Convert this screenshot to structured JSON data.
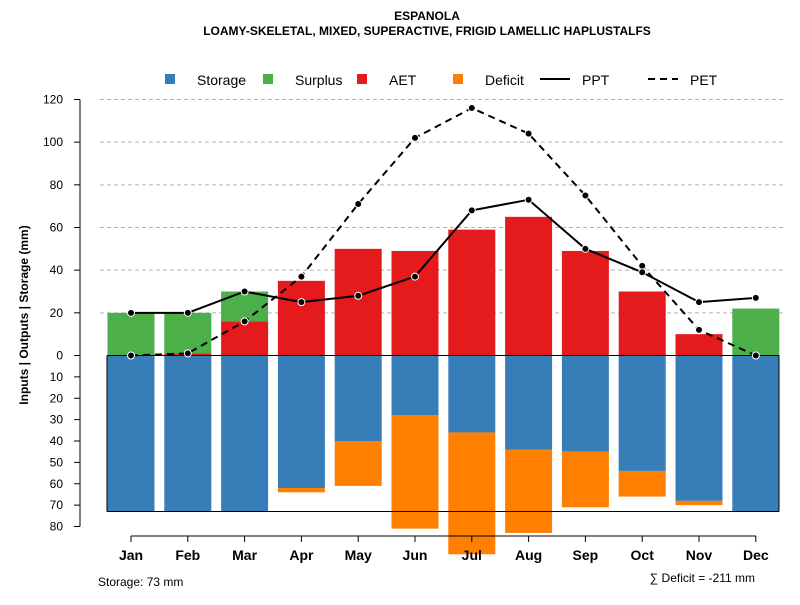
{
  "chart_data": {
    "type": "bar",
    "title": "ESPANOLA",
    "subtitle": "LOAMY-SKELETAL, MIXED, SUPERACTIVE, FRIGID LAMELLIC HAPLUSTALFS",
    "ylabel": "Inputs | Outputs | Storage    (mm)",
    "categories": [
      "Jan",
      "Feb",
      "Mar",
      "Apr",
      "May",
      "Jun",
      "Jul",
      "Aug",
      "Sep",
      "Oct",
      "Nov",
      "Dec"
    ],
    "upper_axis": {
      "ylim": [
        0,
        120
      ],
      "ticks": [
        0,
        20,
        40,
        60,
        80,
        100,
        120
      ],
      "grid": true
    },
    "lower_axis": {
      "ylim": [
        0,
        80
      ],
      "ticks": [
        10,
        20,
        30,
        40,
        50,
        60,
        70,
        80
      ],
      "direction": "down"
    },
    "legend": [
      {
        "label": "Storage",
        "type": "box",
        "color": "#377EB8"
      },
      {
        "label": "Surplus",
        "type": "box",
        "color": "#4DAF4A"
      },
      {
        "label": "AET",
        "type": "box",
        "color": "#E41A1C"
      },
      {
        "label": "Deficit",
        "type": "box",
        "color": "#FF7F00"
      },
      {
        "label": "PPT",
        "type": "line",
        "color": "#000000",
        "dash": "solid"
      },
      {
        "label": "PET",
        "type": "line",
        "color": "#000000",
        "dash": "dashed"
      }
    ],
    "series": [
      {
        "name": "AET",
        "values": [
          0,
          1,
          16,
          35,
          50,
          49,
          59,
          65,
          49,
          30,
          10,
          0
        ],
        "color": "#E41A1C"
      },
      {
        "name": "Surplus",
        "values": [
          20,
          19,
          14,
          0,
          0,
          0,
          0,
          0,
          0,
          0,
          0,
          22
        ],
        "color": "#4DAF4A"
      },
      {
        "name": "Storage",
        "values": [
          73,
          73,
          73,
          62,
          40,
          28,
          36,
          44,
          45,
          54,
          68,
          73
        ],
        "color": "#377EB8"
      },
      {
        "name": "Deficit",
        "values": [
          0,
          0,
          0,
          2,
          21,
          53,
          57,
          39,
          26,
          12,
          2,
          0
        ],
        "color": "#FF7F00"
      },
      {
        "name": "PPT",
        "values": [
          20,
          20,
          30,
          25,
          28,
          37,
          68,
          73,
          50,
          39,
          25,
          27
        ],
        "color": "#000000"
      },
      {
        "name": "PET",
        "values": [
          0,
          1,
          16,
          37,
          71,
          102,
          116,
          104,
          75,
          42,
          12,
          0
        ],
        "color": "#000000"
      }
    ],
    "storage_capacity": 73
  },
  "footer": {
    "storage_label": "Storage: 73 mm",
    "deficit_label": "∑ Deficit = -211 mm"
  }
}
